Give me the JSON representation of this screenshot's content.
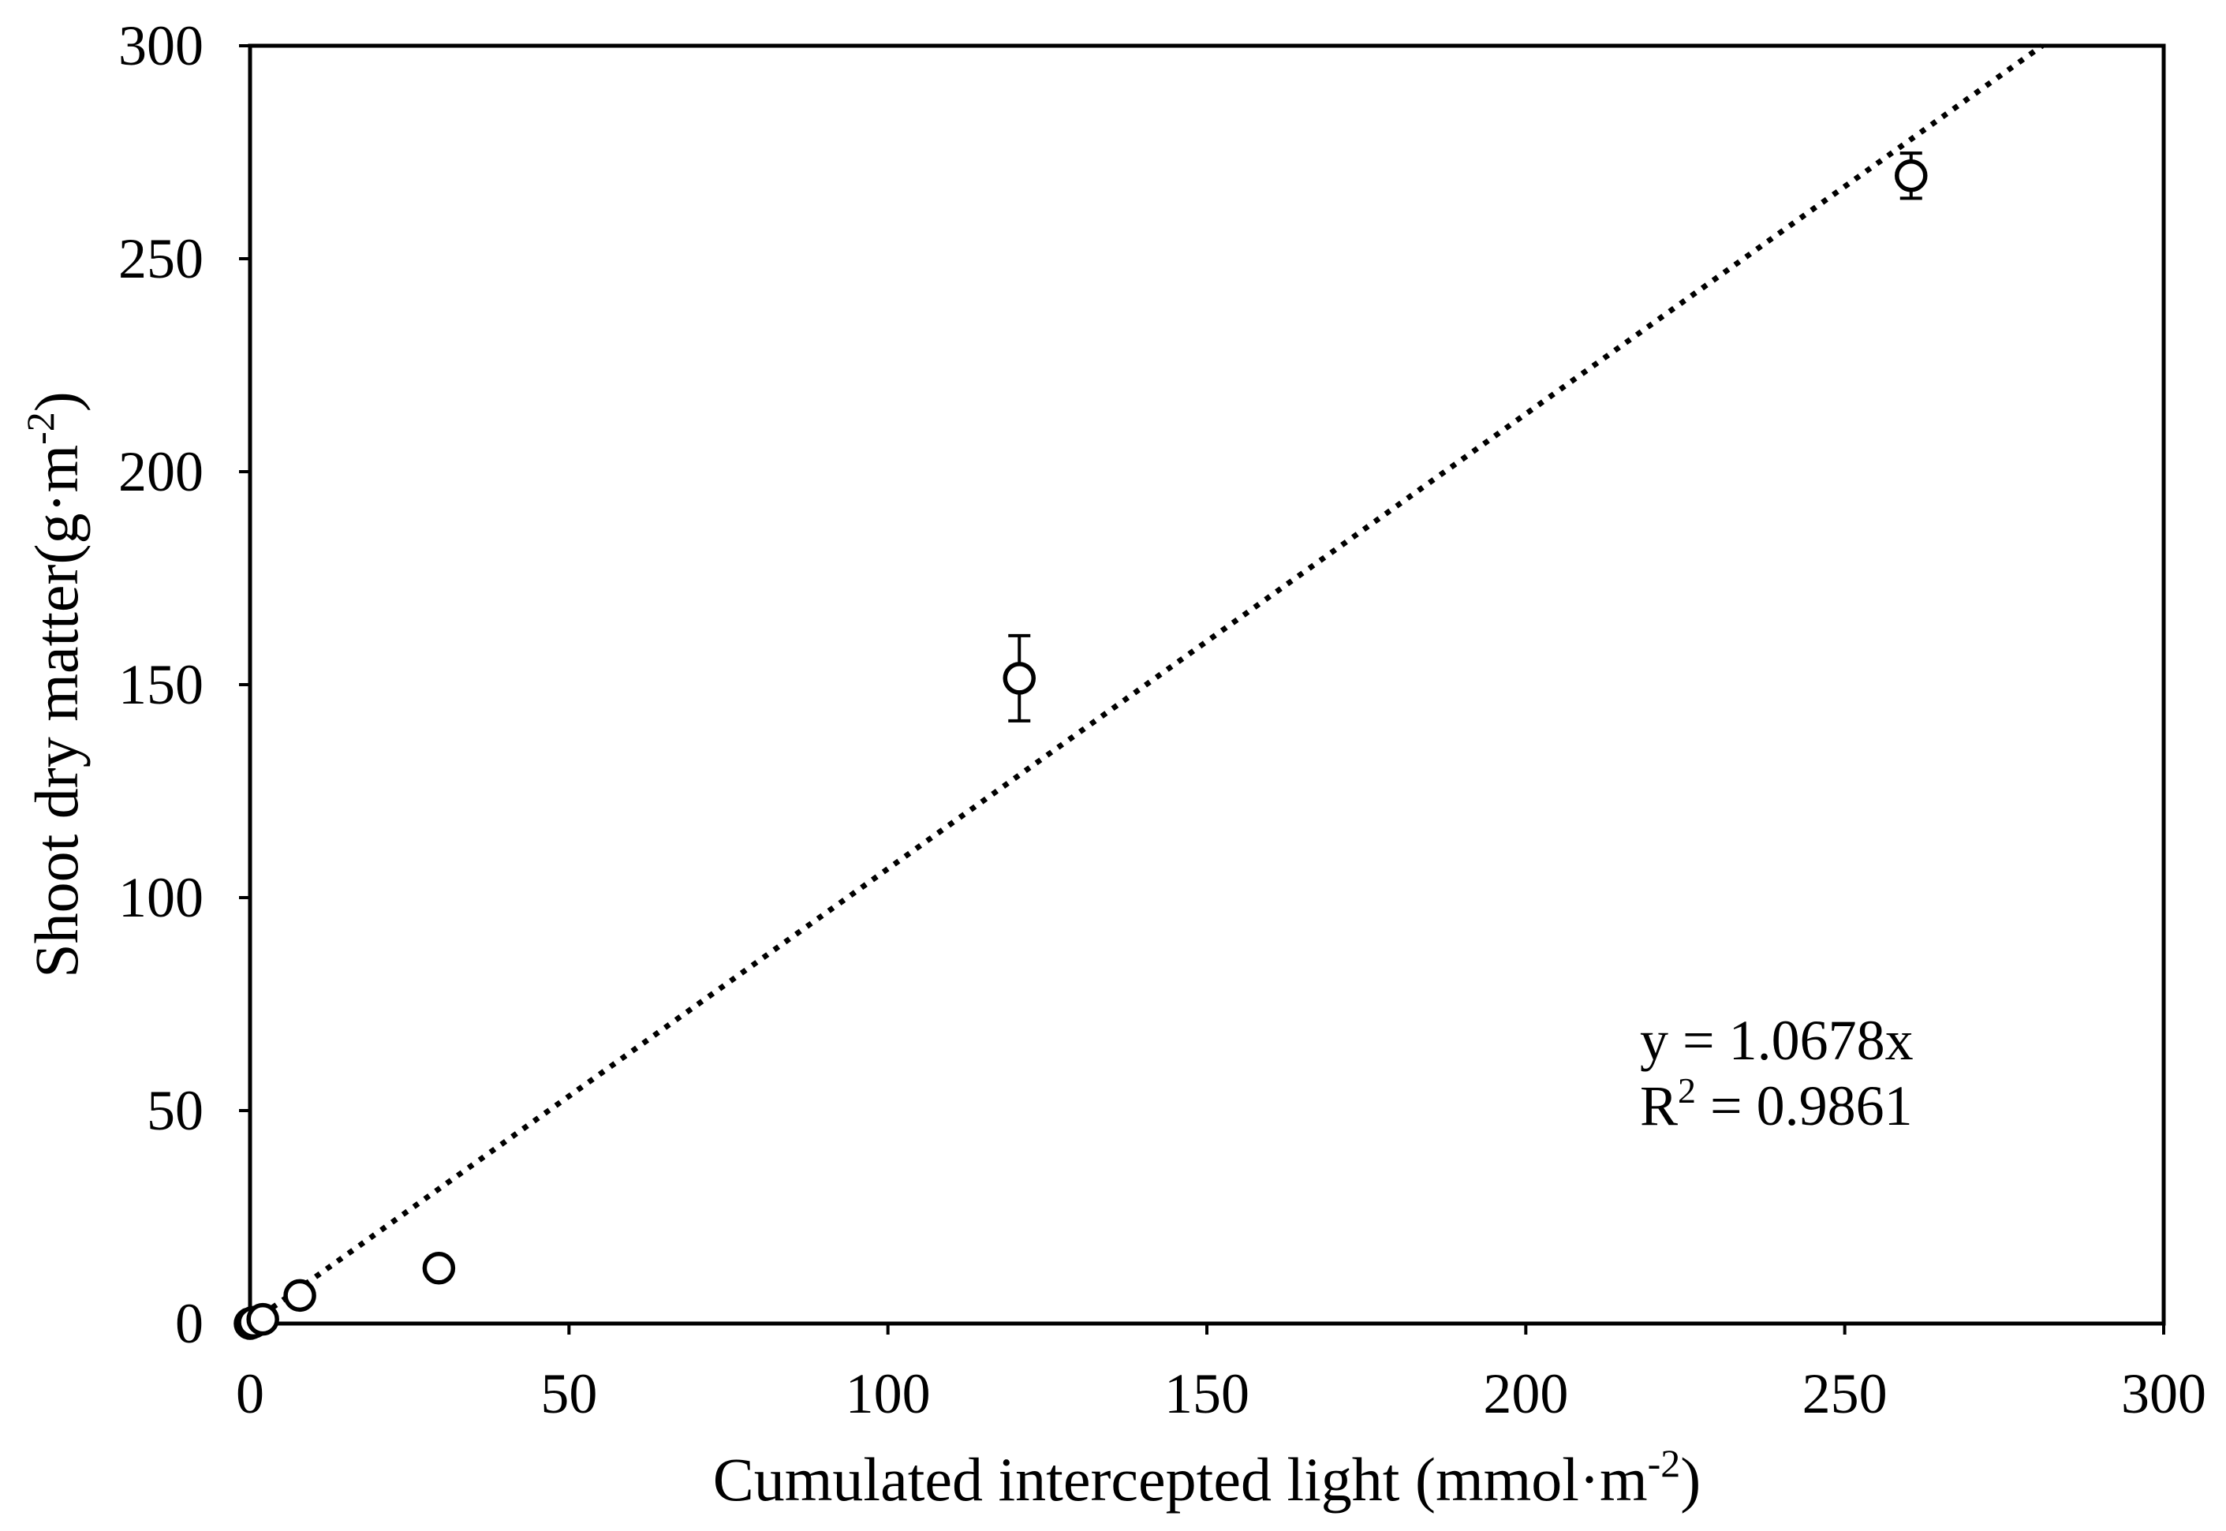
{
  "chart_data": {
    "type": "scatter",
    "xlabel": {
      "text": "Cumulated intercepted light (mmol·m",
      "sup": "-2",
      "tail": ")"
    },
    "ylabel": {
      "text": "Shoot dry matter(g·m",
      "sup": "-2",
      "tail": ")"
    },
    "xlim": [
      0,
      300
    ],
    "ylim": [
      0,
      300
    ],
    "xticks": [
      0,
      50,
      100,
      150,
      200,
      250,
      300
    ],
    "yticks": [
      0,
      50,
      100,
      150,
      200,
      250,
      300
    ],
    "grid": false,
    "legend": false,
    "series": [
      {
        "points": [
          {
            "x": 0,
            "y": 0,
            "err": 0
          },
          {
            "x": 0.5,
            "y": 0.3,
            "err": 0
          },
          {
            "x": 2.0,
            "y": 1.0,
            "err": 0
          },
          {
            "x": 7.8,
            "y": 6.6,
            "err": 0
          },
          {
            "x": 29.6,
            "y": 13.0,
            "err": 0
          },
          {
            "x": 120.6,
            "y": 151.5,
            "err": 10.0
          },
          {
            "x": 260.4,
            "y": 269.5,
            "err": 5.3
          }
        ]
      }
    ],
    "trendline": {
      "slope": 1.0678,
      "intercept": 0,
      "equation": "y = 1.0678x",
      "r2": {
        "text": "R",
        "sup": "2",
        "tail": " = 0.9861"
      }
    },
    "colors": {
      "marker": "#000000",
      "marker_fill": "#ffffff",
      "line": "#000000",
      "frame": "#000000"
    }
  }
}
